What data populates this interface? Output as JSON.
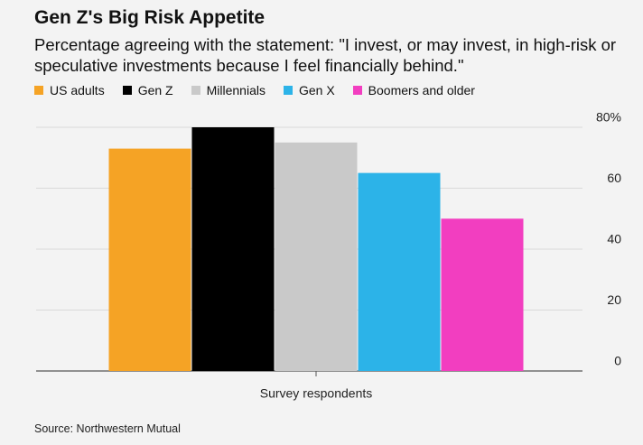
{
  "chart_data": {
    "type": "bar",
    "title": "Gen Z's Big Risk Appetite",
    "subtitle": "Percentage agreeing with the statement: \"I invest, or may invest, in high-risk or speculative investments because I feel financially behind.\"",
    "categories": [
      "Survey respondents"
    ],
    "series": [
      {
        "name": "US adults",
        "color": "#f5a325",
        "values": [
          73
        ]
      },
      {
        "name": "Gen Z",
        "color": "#000000",
        "values": [
          80
        ]
      },
      {
        "name": "Millennials",
        "color": "#c9c9c9",
        "values": [
          75
        ]
      },
      {
        "name": "Gen X",
        "color": "#2cb3e8",
        "values": [
          65
        ]
      },
      {
        "name": "Boomers and older",
        "color": "#f23ec0",
        "values": [
          50
        ]
      }
    ],
    "ylim": [
      0,
      80
    ],
    "yticks": [
      0,
      20,
      40,
      60,
      {
        "value": 80,
        "label": "80%"
      }
    ],
    "grid": true,
    "source": "Source: Northwestern Mutual"
  }
}
